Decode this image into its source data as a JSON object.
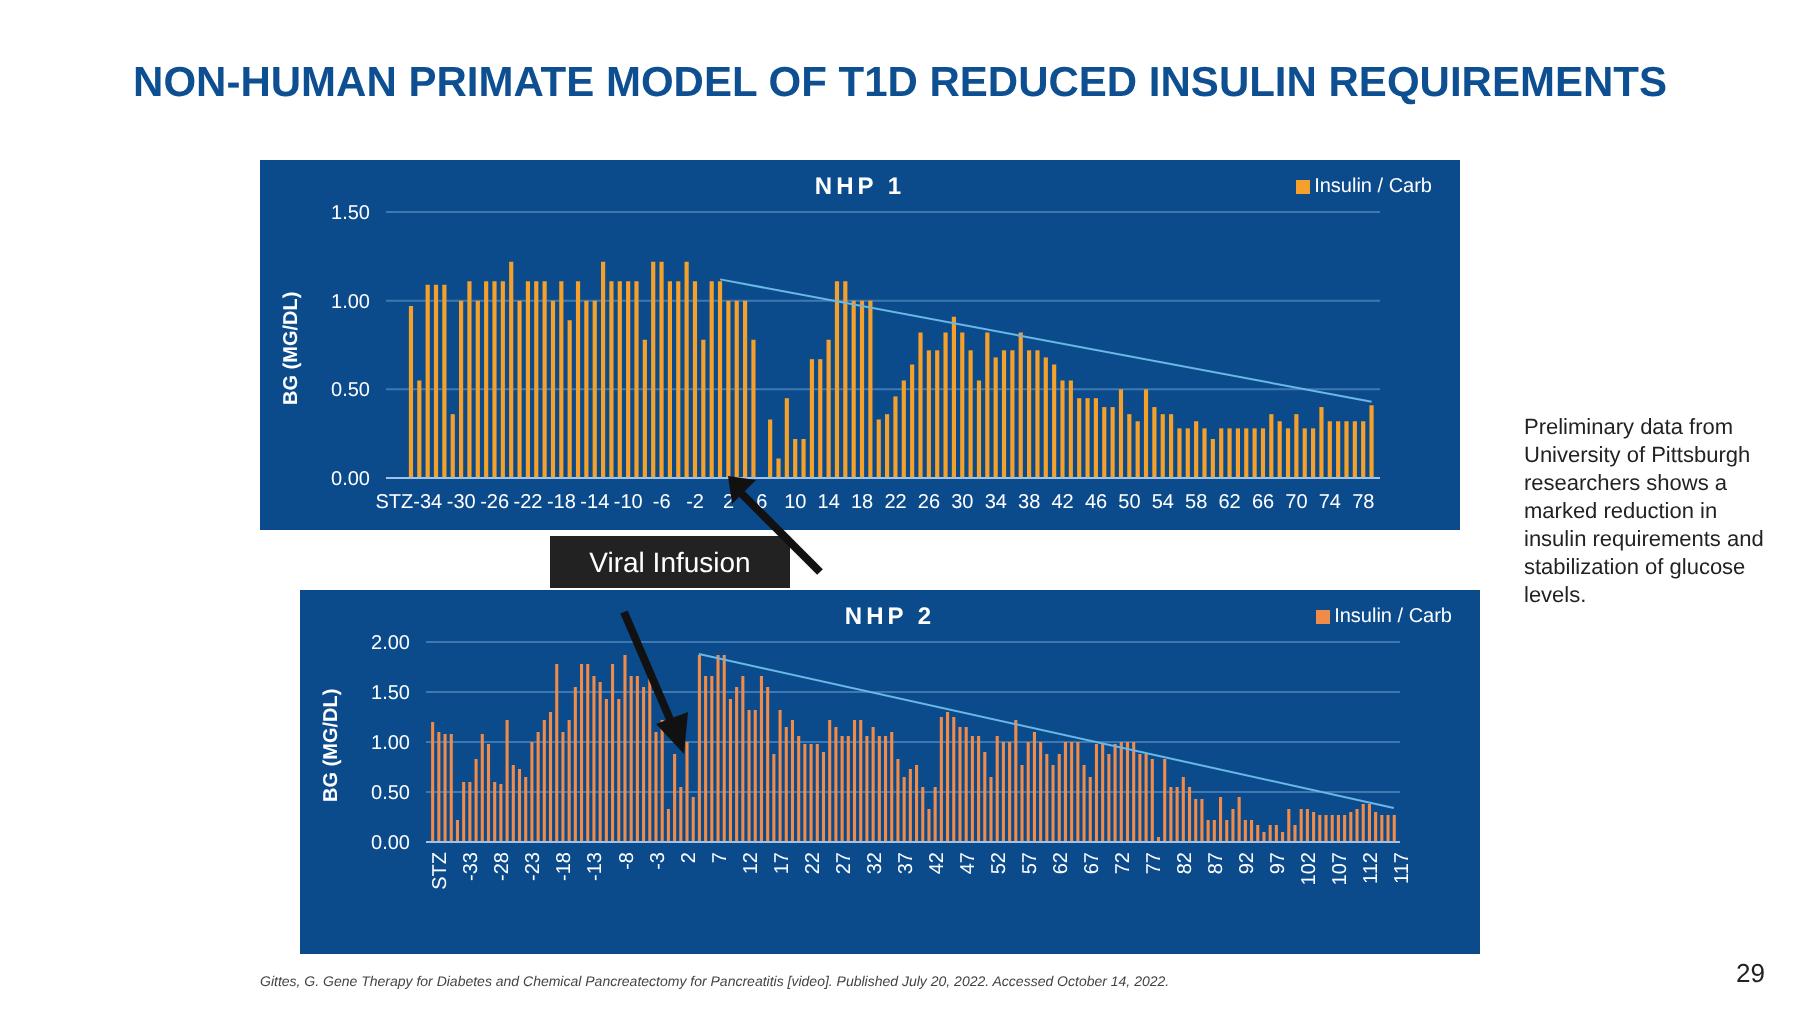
{
  "chart_data": [
    {
      "type": "bar",
      "title": "NHP 1",
      "ylabel": "BG (MG/DL)",
      "legend": "top right",
      "grid": "y",
      "annotations": [
        {
          "text": "Viral Infusion",
          "x": 2,
          "y": 0
        }
      ],
      "xlim": [
        -39,
        80
      ],
      "xticks": [
        {
          "value": -38,
          "label": "STZ"
        },
        -34,
        -30,
        -26,
        -22,
        -18,
        -14,
        -10,
        -6,
        -2,
        2,
        6,
        10,
        14,
        18,
        22,
        26,
        30,
        34,
        38,
        42,
        46,
        50,
        54,
        58,
        62,
        66,
        70,
        74,
        78
      ],
      "ylim": [
        0,
        1.5
      ],
      "yticks": [
        {
          "value": 0,
          "label": "0.00"
        },
        {
          "value": 0.5,
          "label": "0.50"
        },
        {
          "value": 1,
          "label": "1.00"
        },
        {
          "value": 1.5,
          "label": "1.50"
        }
      ],
      "x": [
        -36,
        -35,
        -34,
        -33,
        -32,
        -31,
        -30,
        -29,
        -28,
        -27,
        -26,
        -25,
        -24,
        -23,
        -22,
        -21,
        -20,
        -19,
        -18,
        -17,
        -16,
        -15,
        -14,
        -13,
        -12,
        -11,
        -10,
        -9,
        -8,
        -7,
        -6,
        -5,
        -4,
        -3,
        -2,
        -1,
        0,
        1,
        2,
        3,
        4,
        5,
        6,
        7,
        8,
        9,
        10,
        11,
        12,
        13,
        14,
        15,
        16,
        17,
        18,
        19,
        20,
        21,
        22,
        23,
        24,
        25,
        26,
        27,
        28,
        29,
        30,
        31,
        32,
        33,
        34,
        35,
        36,
        37,
        38,
        39,
        40,
        41,
        42,
        43,
        44,
        45,
        46,
        47,
        48,
        49,
        50,
        51,
        52,
        53,
        54,
        55,
        56,
        57,
        58,
        59,
        60,
        61,
        62,
        63,
        64,
        65,
        66,
        67,
        68,
        69,
        70,
        71,
        72,
        73,
        74,
        75,
        76,
        77,
        78,
        79
      ],
      "series": [
        {
          "name": "Insulin / Carb",
          "color": "#f5a02a",
          "values": [
            0.97,
            0.55,
            1.09,
            1.09,
            1.09,
            0.36,
            1.0,
            1.11,
            1.0,
            1.11,
            1.11,
            1.11,
            1.22,
            1.0,
            1.11,
            1.11,
            1.11,
            1.0,
            1.11,
            0.89,
            1.11,
            1.0,
            1.0,
            1.22,
            1.11,
            1.11,
            1.11,
            1.11,
            0.78,
            1.22,
            1.22,
            1.11,
            1.11,
            1.22,
            1.11,
            0.78,
            1.11,
            1.11,
            1.0,
            1.0,
            1.0,
            0.78,
            null,
            0.33,
            0.11,
            0.45,
            0.22,
            0.22,
            0.67,
            0.67,
            0.78,
            1.11,
            1.11,
            1.0,
            1.0,
            1.0,
            0.33,
            0.36,
            0.46,
            0.55,
            0.64,
            0.82,
            0.72,
            0.72,
            0.82,
            0.91,
            0.82,
            0.72,
            0.55,
            0.82,
            0.68,
            0.72,
            0.72,
            0.82,
            0.72,
            0.72,
            0.68,
            0.64,
            0.55,
            0.55,
            0.45,
            0.45,
            0.45,
            0.4,
            0.4,
            0.5,
            0.36,
            0.32,
            0.5,
            0.4,
            0.36,
            0.36,
            0.28,
            0.28,
            0.32,
            0.28,
            0.22,
            0.28,
            0.28,
            0.28,
            0.28,
            0.28,
            0.28,
            0.36,
            0.32,
            0.28,
            0.36,
            0.28,
            0.28,
            0.4,
            0.32,
            0.32,
            0.32,
            0.32,
            0.32,
            0.41
          ]
        },
        {
          "type": "line",
          "color": "#6ab8e6",
          "x": [
            1,
            79
          ],
          "values": [
            1.12,
            0.43
          ]
        }
      ]
    },
    {
      "type": "bar",
      "title": "NHP 2",
      "ylabel": "BG (MG/DL)",
      "legend": "top right",
      "grid": "y",
      "xlim": [
        -39,
        118
      ],
      "xticks": [
        {
          "value": -38,
          "label": "STZ"
        },
        -33,
        -28,
        -23,
        -18,
        -13,
        -8,
        -3,
        2,
        7,
        12,
        17,
        22,
        27,
        32,
        37,
        42,
        47,
        52,
        57,
        62,
        67,
        72,
        77,
        82,
        87,
        92,
        97,
        102,
        107,
        112,
        117
      ],
      "ylim": [
        0,
        2
      ],
      "yticks": [
        {
          "value": 0,
          "label": "0.00"
        },
        {
          "value": 0.5,
          "label": "0.50"
        },
        {
          "value": 1,
          "label": "1.00"
        },
        {
          "value": 1.5,
          "label": "1.50"
        },
        {
          "value": 2,
          "label": "2.00"
        }
      ],
      "x": [
        -38,
        -37,
        -36,
        -35,
        -34,
        -33,
        -32,
        -31,
        -30,
        -29,
        -28,
        -27,
        -26,
        -25,
        -24,
        -23,
        -22,
        -21,
        -20,
        -19,
        -18,
        -17,
        -16,
        -15,
        -14,
        -13,
        -12,
        -11,
        -10,
        -9,
        -8,
        -7,
        -6,
        -5,
        -4,
        -3,
        -2,
        -1,
        0,
        1,
        2,
        3,
        4,
        5,
        6,
        7,
        8,
        9,
        10,
        11,
        12,
        13,
        14,
        15,
        16,
        17,
        18,
        19,
        20,
        21,
        22,
        23,
        24,
        25,
        26,
        27,
        28,
        29,
        30,
        31,
        32,
        33,
        34,
        35,
        36,
        37,
        38,
        39,
        40,
        41,
        42,
        43,
        44,
        45,
        46,
        47,
        48,
        49,
        50,
        51,
        52,
        53,
        54,
        55,
        56,
        57,
        58,
        59,
        60,
        61,
        62,
        63,
        64,
        65,
        66,
        67,
        68,
        69,
        70,
        71,
        72,
        73,
        74,
        75,
        76,
        77,
        78,
        79,
        80,
        81,
        82,
        83,
        84,
        85,
        86,
        87,
        88,
        89,
        90,
        91,
        92,
        93,
        94,
        95,
        96,
        97,
        98,
        99,
        100,
        101,
        102,
        103,
        104,
        105,
        106,
        107,
        108,
        109,
        110,
        111,
        112,
        113,
        114,
        115,
        116,
        117
      ],
      "series": [
        {
          "name": "Insulin / Carb",
          "color": "#f08b4a",
          "values": [
            1.2,
            1.1,
            1.08,
            1.08,
            0.22,
            0.6,
            0.6,
            0.83,
            1.08,
            0.98,
            0.6,
            0.58,
            1.22,
            0.77,
            0.73,
            0.65,
            1.0,
            1.1,
            1.22,
            1.3,
            1.78,
            1.1,
            1.22,
            1.55,
            1.78,
            1.78,
            1.66,
            1.6,
            1.43,
            1.78,
            1.43,
            1.87,
            1.66,
            1.66,
            1.55,
            1.66,
            1.1,
            1.22,
            0.33,
            0.88,
            0.55,
            1.0,
            0.45,
            1.87,
            1.66,
            1.66,
            1.87,
            1.87,
            1.43,
            1.55,
            1.66,
            1.32,
            1.32,
            1.66,
            1.55,
            0.88,
            1.32,
            1.15,
            1.22,
            1.06,
            0.98,
            0.98,
            0.98,
            0.9,
            1.22,
            1.15,
            1.06,
            1.06,
            1.22,
            1.22,
            1.06,
            1.15,
            1.06,
            1.06,
            1.1,
            0.83,
            0.65,
            0.73,
            0.77,
            0.55,
            0.33,
            0.55,
            1.25,
            1.3,
            1.25,
            1.15,
            1.15,
            1.06,
            1.06,
            0.9,
            0.65,
            1.06,
            1.0,
            1.0,
            1.22,
            0.77,
            1.0,
            1.1,
            1.0,
            0.88,
            0.77,
            0.88,
            1.0,
            1.0,
            1.0,
            0.77,
            0.65,
            0.98,
            0.98,
            0.88,
            0.98,
            1.0,
            1.0,
            1.0,
            0.88,
            0.88,
            0.83,
            0.05,
            0.83,
            0.55,
            0.55,
            0.65,
            0.55,
            0.43,
            0.43,
            0.22,
            0.22,
            0.45,
            0.22,
            0.33,
            0.45,
            0.22,
            0.22,
            0.17,
            0.1,
            0.17,
            0.17,
            0.1,
            0.33,
            0.17,
            0.33,
            0.33,
            0.3,
            0.27,
            0.27,
            0.27,
            0.27,
            0.27,
            0.3,
            0.33,
            0.38,
            0.38,
            0.3,
            0.27,
            0.27,
            0.27
          ]
        },
        {
          "type": "line",
          "color": "#6ab8e6",
          "x": [
            5,
            117
          ],
          "values": [
            1.88,
            0.34
          ]
        }
      ]
    },
    {
      "type": "other",
      "title": "NON-HUMAN PRIMATE MODEL OF T1D REDUCED INSULIN REQUIREMENTS",
      "annotations": [
        "Preliminary data from University of Pittsburgh researchers shows a marked reduction in insulin requirements and stabilization of glucose levels.",
        "Gittes, G. Gene Therapy for Diabetes and Chemical Pancreatectomy for Pancreatitis [video]. Published July 20, 2022. Accessed October 14, 2022.",
        "29"
      ]
    }
  ]
}
